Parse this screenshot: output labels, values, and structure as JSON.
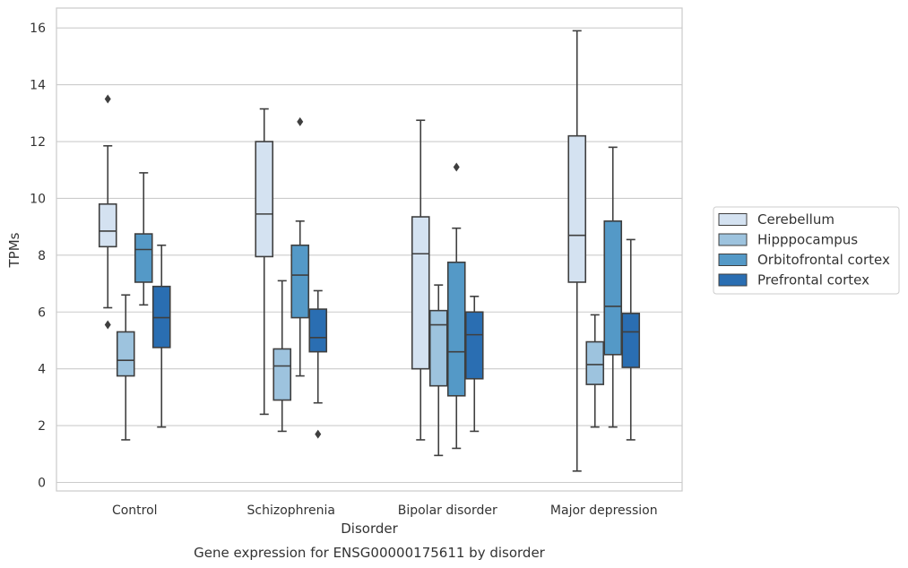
{
  "chart_data": {
    "type": "box",
    "title": "Gene expression for ENSG00000175611 by disorder",
    "xlabel": "Disorder",
    "ylabel": "TPMs",
    "ylim": [
      -0.3,
      16.7
    ],
    "yticks": [
      0,
      2,
      4,
      6,
      8,
      10,
      12,
      14,
      16
    ],
    "grid": true,
    "legend_position": "right",
    "categories": [
      "Control",
      "Schizophrenia",
      "Bipolar disorder",
      "Major depression"
    ],
    "series": [
      {
        "name": "Cerebellum",
        "color": "#d4e2f1",
        "boxes": [
          {
            "category": "Control",
            "whisker_low": 6.15,
            "q1": 8.3,
            "median": 8.85,
            "q3": 9.8,
            "whisker_high": 11.85,
            "outliers": [
              13.5,
              5.55
            ]
          },
          {
            "category": "Schizophrenia",
            "whisker_low": 2.4,
            "q1": 7.95,
            "median": 9.45,
            "q3": 12.0,
            "whisker_high": 13.15,
            "outliers": []
          },
          {
            "category": "Bipolar disorder",
            "whisker_low": 1.5,
            "q1": 4.0,
            "median": 8.05,
            "q3": 9.35,
            "whisker_high": 12.75,
            "outliers": []
          },
          {
            "category": "Major depression",
            "whisker_low": 0.4,
            "q1": 7.05,
            "median": 8.7,
            "q3": 12.2,
            "whisker_high": 15.9,
            "outliers": []
          }
        ]
      },
      {
        "name": "Hipppocampus",
        "color": "#9dc3de",
        "boxes": [
          {
            "category": "Control",
            "whisker_low": 1.5,
            "q1": 3.75,
            "median": 4.3,
            "q3": 5.3,
            "whisker_high": 6.6,
            "outliers": []
          },
          {
            "category": "Schizophrenia",
            "whisker_low": 1.8,
            "q1": 2.9,
            "median": 4.1,
            "q3": 4.7,
            "whisker_high": 7.1,
            "outliers": []
          },
          {
            "category": "Bipolar disorder",
            "whisker_low": 0.95,
            "q1": 3.4,
            "median": 5.55,
            "q3": 6.05,
            "whisker_high": 6.95,
            "outliers": []
          },
          {
            "category": "Major depression",
            "whisker_low": 1.95,
            "q1": 3.45,
            "median": 4.15,
            "q3": 4.95,
            "whisker_high": 5.9,
            "outliers": []
          }
        ]
      },
      {
        "name": "Orbitofrontal cortex",
        "color": "#5499c7",
        "boxes": [
          {
            "category": "Control",
            "whisker_low": 6.25,
            "q1": 7.05,
            "median": 8.2,
            "q3": 8.75,
            "whisker_high": 10.9,
            "outliers": []
          },
          {
            "category": "Schizophrenia",
            "whisker_low": 3.75,
            "q1": 5.8,
            "median": 7.3,
            "q3": 8.35,
            "whisker_high": 9.2,
            "outliers": [
              12.7
            ]
          },
          {
            "category": "Bipolar disorder",
            "whisker_low": 1.2,
            "q1": 3.05,
            "median": 4.6,
            "q3": 7.75,
            "whisker_high": 8.95,
            "outliers": [
              11.1
            ]
          },
          {
            "category": "Major depression",
            "whisker_low": 1.95,
            "q1": 4.5,
            "median": 6.2,
            "q3": 9.2,
            "whisker_high": 11.8,
            "outliers": []
          }
        ]
      },
      {
        "name": "Prefrontal cortex",
        "color": "#2a6eb2",
        "boxes": [
          {
            "category": "Control",
            "whisker_low": 1.95,
            "q1": 4.75,
            "median": 5.8,
            "q3": 6.9,
            "whisker_high": 8.35,
            "outliers": []
          },
          {
            "category": "Schizophrenia",
            "whisker_low": 2.8,
            "q1": 4.6,
            "median": 5.1,
            "q3": 6.1,
            "whisker_high": 6.75,
            "outliers": [
              1.7
            ]
          },
          {
            "category": "Bipolar disorder",
            "whisker_low": 1.8,
            "q1": 3.65,
            "median": 5.2,
            "q3": 6.0,
            "whisker_high": 6.55,
            "outliers": []
          },
          {
            "category": "Major depression",
            "whisker_low": 1.5,
            "q1": 4.05,
            "median": 5.3,
            "q3": 5.95,
            "whisker_high": 8.55,
            "outliers": []
          }
        ]
      }
    ]
  }
}
